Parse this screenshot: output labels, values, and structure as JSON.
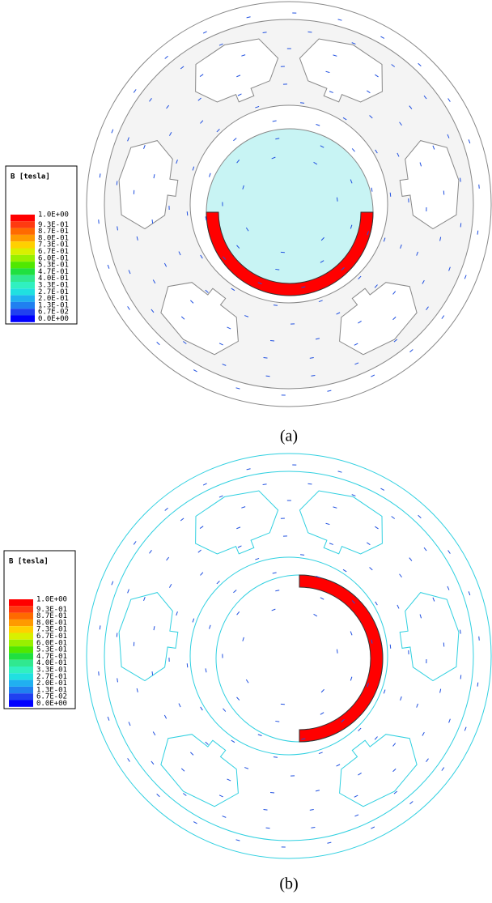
{
  "figures": [
    {
      "legend": {
        "title": "B [tesla]",
        "entries": [
          {
            "label": "1.0E+00",
            "color": "#ff0000"
          },
          {
            "label": "9.3E-01",
            "color": "#ff3a10"
          },
          {
            "label": "8.7E-01",
            "color": "#ff6a00"
          },
          {
            "label": "8.0E-01",
            "color": "#ff9a00"
          },
          {
            "label": "7.3E-01",
            "color": "#ffd000"
          },
          {
            "label": "6.7E-01",
            "color": "#d8f000"
          },
          {
            "label": "6.0E-01",
            "color": "#98f000"
          },
          {
            "label": "5.3E-01",
            "color": "#50e800"
          },
          {
            "label": "4.7E-01",
            "color": "#20e040"
          },
          {
            "label": "4.0E-01",
            "color": "#30e890"
          },
          {
            "label": "3.3E-01",
            "color": "#30f0c0"
          },
          {
            "label": "2.7E-01",
            "color": "#20e0e0"
          },
          {
            "label": "2.0E-01",
            "color": "#20b0f0"
          },
          {
            "label": "1.3E-01",
            "color": "#2080f0"
          },
          {
            "label": "6.7E-02",
            "color": "#2040f0"
          },
          {
            "label": "0.0E+00",
            "color": "#0000ff"
          }
        ]
      },
      "caption": "(a)"
    },
    {
      "legend": {
        "title": "B [tesla]",
        "entries": [
          {
            "label": "1.0E+00",
            "color": "#ff0000"
          },
          {
            "label": "9.3E-01",
            "color": "#ff3a10"
          },
          {
            "label": "8.7E-01",
            "color": "#ff6a00"
          },
          {
            "label": "8.0E-01",
            "color": "#ff9a00"
          },
          {
            "label": "7.3E-01",
            "color": "#ffd000"
          },
          {
            "label": "6.7E-01",
            "color": "#d8f000"
          },
          {
            "label": "6.0E-01",
            "color": "#98f000"
          },
          {
            "label": "5.3E-01",
            "color": "#50e800"
          },
          {
            "label": "4.7E-01",
            "color": "#20e040"
          },
          {
            "label": "4.0E-01",
            "color": "#30e890"
          },
          {
            "label": "3.3E-01",
            "color": "#30f0c0"
          },
          {
            "label": "2.7E-01",
            "color": "#20e0e0"
          },
          {
            "label": "2.0E-01",
            "color": "#20b0f0"
          },
          {
            "label": "1.3E-01",
            "color": "#2080f0"
          },
          {
            "label": "6.7E-02",
            "color": "#2040f0"
          },
          {
            "label": "0.0E+00",
            "color": "#0000ff"
          }
        ]
      },
      "caption": "(b)"
    }
  ]
}
